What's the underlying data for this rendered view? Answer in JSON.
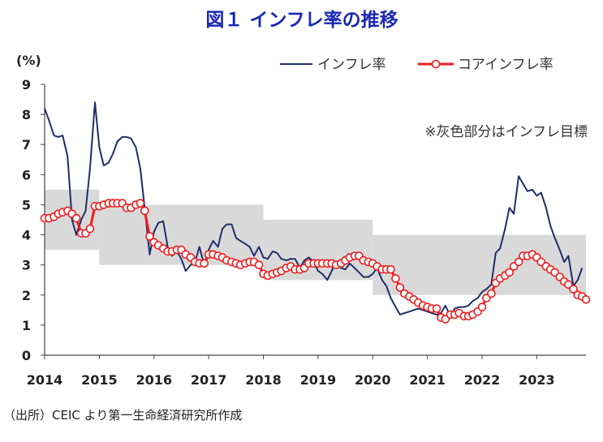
{
  "chart_data": {
    "type": "line",
    "title": "図１ インフレ率の推移",
    "ylabel": "(%)",
    "xlabel": "",
    "ylim": [
      0,
      9
    ],
    "yticks": [
      "0",
      "1",
      "2",
      "3",
      "4",
      "5",
      "6",
      "7",
      "8",
      "9"
    ],
    "xlim": [
      2014.0,
      2023.9
    ],
    "xticks": [
      {
        "label": "2014",
        "x": 2014.0
      },
      {
        "label": "2015",
        "x": 2015.0
      },
      {
        "label": "2016",
        "x": 2016.0
      },
      {
        "label": "2017",
        "x": 2017.0
      },
      {
        "label": "2018",
        "x": 2018.0
      },
      {
        "label": "2019",
        "x": 2019.0
      },
      {
        "label": "2020",
        "x": 2020.0
      },
      {
        "label": "2021",
        "x": 2021.0
      },
      {
        "label": "2022",
        "x": 2022.0
      },
      {
        "label": "2023",
        "x": 2023.0
      }
    ],
    "annotation": "※灰色部分はインフレ目標",
    "source": "（出所）CEIC より第一生命経済研究所作成",
    "target_band": [
      {
        "x0": 2014.0,
        "x1": 2015.0,
        "low": 3.5,
        "high": 5.5
      },
      {
        "x0": 2015.0,
        "x1": 2016.0,
        "low": 3.0,
        "high": 5.0
      },
      {
        "x0": 2016.0,
        "x1": 2018.0,
        "low": 3.0,
        "high": 5.0
      },
      {
        "x0": 2018.0,
        "x1": 2020.0,
        "low": 2.5,
        "high": 4.5
      },
      {
        "x0": 2020.0,
        "x1": 2023.9,
        "low": 2.0,
        "high": 4.0
      }
    ],
    "series": [
      {
        "name": "インフレ率",
        "color": "#1f2d6b",
        "marker": false,
        "points": [
          [
            2014.0,
            8.2
          ],
          [
            2014.08,
            7.8
          ],
          [
            2014.17,
            7.3
          ],
          [
            2014.25,
            7.25
          ],
          [
            2014.33,
            7.3
          ],
          [
            2014.42,
            6.6
          ],
          [
            2014.5,
            4.5
          ],
          [
            2014.58,
            4.0
          ],
          [
            2014.67,
            4.5
          ],
          [
            2014.75,
            4.8
          ],
          [
            2014.83,
            6.2
          ],
          [
            2014.92,
            8.4
          ],
          [
            2015.0,
            6.9
          ],
          [
            2015.08,
            6.3
          ],
          [
            2015.17,
            6.4
          ],
          [
            2015.25,
            6.7
          ],
          [
            2015.33,
            7.1
          ],
          [
            2015.42,
            7.25
          ],
          [
            2015.5,
            7.25
          ],
          [
            2015.58,
            7.2
          ],
          [
            2015.67,
            6.9
          ],
          [
            2015.75,
            6.2
          ],
          [
            2015.83,
            4.9
          ],
          [
            2015.92,
            3.35
          ],
          [
            2016.0,
            4.1
          ],
          [
            2016.08,
            4.4
          ],
          [
            2016.17,
            4.45
          ],
          [
            2016.25,
            3.6
          ],
          [
            2016.33,
            3.3
          ],
          [
            2016.42,
            3.45
          ],
          [
            2016.5,
            3.2
          ],
          [
            2016.58,
            2.8
          ],
          [
            2016.67,
            3.0
          ],
          [
            2016.75,
            3.1
          ],
          [
            2016.83,
            3.6
          ],
          [
            2016.92,
            3.0
          ],
          [
            2017.0,
            3.5
          ],
          [
            2017.08,
            3.8
          ],
          [
            2017.17,
            3.6
          ],
          [
            2017.25,
            4.2
          ],
          [
            2017.33,
            4.35
          ],
          [
            2017.42,
            4.35
          ],
          [
            2017.5,
            3.9
          ],
          [
            2017.58,
            3.8
          ],
          [
            2017.67,
            3.7
          ],
          [
            2017.75,
            3.6
          ],
          [
            2017.83,
            3.3
          ],
          [
            2017.92,
            3.6
          ],
          [
            2018.0,
            3.25
          ],
          [
            2018.08,
            3.2
          ],
          [
            2018.17,
            3.45
          ],
          [
            2018.25,
            3.4
          ],
          [
            2018.33,
            3.2
          ],
          [
            2018.42,
            3.15
          ],
          [
            2018.5,
            3.2
          ],
          [
            2018.58,
            3.2
          ],
          [
            2018.67,
            2.9
          ],
          [
            2018.75,
            3.15
          ],
          [
            2018.83,
            3.25
          ],
          [
            2018.92,
            3.1
          ],
          [
            2019.0,
            2.8
          ],
          [
            2019.08,
            2.7
          ],
          [
            2019.17,
            2.5
          ],
          [
            2019.25,
            2.8
          ],
          [
            2019.33,
            3.1
          ],
          [
            2019.42,
            2.9
          ],
          [
            2019.5,
            2.85
          ],
          [
            2019.58,
            3.05
          ],
          [
            2019.67,
            2.9
          ],
          [
            2019.75,
            2.75
          ],
          [
            2019.83,
            2.6
          ],
          [
            2019.92,
            2.6
          ],
          [
            2020.0,
            2.7
          ],
          [
            2020.08,
            2.9
          ],
          [
            2020.17,
            2.5
          ],
          [
            2020.25,
            2.3
          ],
          [
            2020.33,
            1.9
          ],
          [
            2020.42,
            1.6
          ],
          [
            2020.5,
            1.35
          ],
          [
            2020.58,
            1.4
          ],
          [
            2020.67,
            1.45
          ],
          [
            2020.75,
            1.5
          ],
          [
            2020.83,
            1.55
          ],
          [
            2020.92,
            1.5
          ],
          [
            2021.0,
            1.45
          ],
          [
            2021.08,
            1.4
          ],
          [
            2021.17,
            1.35
          ],
          [
            2021.25,
            1.4
          ],
          [
            2021.33,
            1.65
          ],
          [
            2021.42,
            1.3
          ],
          [
            2021.5,
            1.55
          ],
          [
            2021.58,
            1.6
          ],
          [
            2021.67,
            1.6
          ],
          [
            2021.75,
            1.65
          ],
          [
            2021.83,
            1.8
          ],
          [
            2021.92,
            1.9
          ],
          [
            2022.0,
            2.1
          ],
          [
            2022.08,
            2.2
          ],
          [
            2022.17,
            2.35
          ],
          [
            2022.25,
            3.4
          ],
          [
            2022.33,
            3.55
          ],
          [
            2022.42,
            4.2
          ],
          [
            2022.5,
            4.9
          ],
          [
            2022.58,
            4.7
          ],
          [
            2022.67,
            5.95
          ],
          [
            2022.75,
            5.7
          ],
          [
            2022.83,
            5.45
          ],
          [
            2022.92,
            5.5
          ],
          [
            2023.0,
            5.3
          ],
          [
            2023.08,
            5.4
          ],
          [
            2023.17,
            4.9
          ],
          [
            2023.25,
            4.3
          ],
          [
            2023.33,
            3.9
          ],
          [
            2023.42,
            3.5
          ],
          [
            2023.5,
            3.1
          ],
          [
            2023.58,
            3.3
          ],
          [
            2023.67,
            2.3
          ],
          [
            2023.75,
            2.5
          ],
          [
            2023.83,
            2.9
          ]
        ]
      },
      {
        "name": "コアインフレ率",
        "color": "#ee1c1c",
        "marker": true,
        "points": [
          [
            2014.0,
            4.55
          ],
          [
            2014.08,
            4.55
          ],
          [
            2014.17,
            4.6
          ],
          [
            2014.25,
            4.7
          ],
          [
            2014.33,
            4.75
          ],
          [
            2014.42,
            4.8
          ],
          [
            2014.5,
            4.7
          ],
          [
            2014.58,
            4.55
          ],
          [
            2014.67,
            4.05
          ],
          [
            2014.75,
            4.05
          ],
          [
            2014.83,
            4.2
          ],
          [
            2014.92,
            4.95
          ],
          [
            2015.0,
            4.95
          ],
          [
            2015.08,
            5.0
          ],
          [
            2015.17,
            5.05
          ],
          [
            2015.25,
            5.05
          ],
          [
            2015.33,
            5.05
          ],
          [
            2015.42,
            5.05
          ],
          [
            2015.5,
            4.9
          ],
          [
            2015.58,
            4.9
          ],
          [
            2015.67,
            5.0
          ],
          [
            2015.75,
            5.05
          ],
          [
            2015.83,
            4.8
          ],
          [
            2015.92,
            3.95
          ],
          [
            2016.0,
            3.75
          ],
          [
            2016.08,
            3.65
          ],
          [
            2016.17,
            3.55
          ],
          [
            2016.25,
            3.45
          ],
          [
            2016.33,
            3.45
          ],
          [
            2016.42,
            3.5
          ],
          [
            2016.5,
            3.5
          ],
          [
            2016.58,
            3.35
          ],
          [
            2016.67,
            3.25
          ],
          [
            2016.75,
            3.1
          ],
          [
            2016.83,
            3.05
          ],
          [
            2016.92,
            3.05
          ],
          [
            2017.0,
            3.35
          ],
          [
            2017.08,
            3.35
          ],
          [
            2017.17,
            3.3
          ],
          [
            2017.25,
            3.25
          ],
          [
            2017.33,
            3.15
          ],
          [
            2017.42,
            3.1
          ],
          [
            2017.5,
            3.05
          ],
          [
            2017.58,
            3.0
          ],
          [
            2017.67,
            3.05
          ],
          [
            2017.75,
            3.1
          ],
          [
            2017.83,
            3.1
          ],
          [
            2017.92,
            3.0
          ],
          [
            2018.0,
            2.7
          ],
          [
            2018.08,
            2.65
          ],
          [
            2018.17,
            2.7
          ],
          [
            2018.25,
            2.75
          ],
          [
            2018.33,
            2.8
          ],
          [
            2018.42,
            2.9
          ],
          [
            2018.5,
            2.95
          ],
          [
            2018.58,
            2.85
          ],
          [
            2018.67,
            2.85
          ],
          [
            2018.75,
            2.9
          ],
          [
            2018.83,
            3.05
          ],
          [
            2018.92,
            3.05
          ],
          [
            2019.0,
            3.05
          ],
          [
            2019.08,
            3.05
          ],
          [
            2019.17,
            3.05
          ],
          [
            2019.25,
            3.05
          ],
          [
            2019.33,
            3.0
          ],
          [
            2019.42,
            3.05
          ],
          [
            2019.5,
            3.15
          ],
          [
            2019.58,
            3.25
          ],
          [
            2019.67,
            3.3
          ],
          [
            2019.75,
            3.3
          ],
          [
            2019.83,
            3.15
          ],
          [
            2019.92,
            3.1
          ],
          [
            2020.0,
            3.05
          ],
          [
            2020.08,
            2.95
          ],
          [
            2020.17,
            2.85
          ],
          [
            2020.25,
            2.85
          ],
          [
            2020.33,
            2.85
          ],
          [
            2020.42,
            2.55
          ],
          [
            2020.5,
            2.25
          ],
          [
            2020.58,
            2.05
          ],
          [
            2020.67,
            1.95
          ],
          [
            2020.75,
            1.85
          ],
          [
            2020.83,
            1.75
          ],
          [
            2020.92,
            1.65
          ],
          [
            2021.0,
            1.6
          ],
          [
            2021.08,
            1.55
          ],
          [
            2021.17,
            1.55
          ],
          [
            2021.25,
            1.25
          ],
          [
            2021.33,
            1.2
          ],
          [
            2021.42,
            1.35
          ],
          [
            2021.5,
            1.35
          ],
          [
            2021.58,
            1.4
          ],
          [
            2021.67,
            1.3
          ],
          [
            2021.75,
            1.3
          ],
          [
            2021.83,
            1.35
          ],
          [
            2021.92,
            1.45
          ],
          [
            2022.0,
            1.6
          ],
          [
            2022.08,
            1.9
          ],
          [
            2022.17,
            2.05
          ],
          [
            2022.25,
            2.4
          ],
          [
            2022.33,
            2.55
          ],
          [
            2022.42,
            2.65
          ],
          [
            2022.5,
            2.75
          ],
          [
            2022.58,
            2.95
          ],
          [
            2022.67,
            3.1
          ],
          [
            2022.75,
            3.3
          ],
          [
            2022.83,
            3.3
          ],
          [
            2022.92,
            3.35
          ],
          [
            2023.0,
            3.25
          ],
          [
            2023.08,
            3.1
          ],
          [
            2023.17,
            2.95
          ],
          [
            2023.25,
            2.85
          ],
          [
            2023.33,
            2.75
          ],
          [
            2023.42,
            2.6
          ],
          [
            2023.5,
            2.45
          ],
          [
            2023.58,
            2.35
          ],
          [
            2023.67,
            2.2
          ],
          [
            2023.75,
            2.0
          ],
          [
            2023.83,
            1.95
          ],
          [
            2023.9,
            1.85
          ]
        ]
      }
    ]
  }
}
